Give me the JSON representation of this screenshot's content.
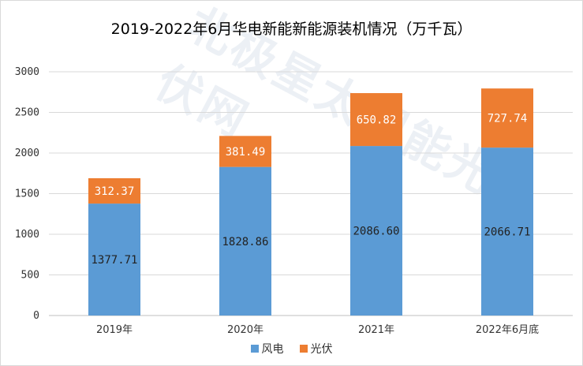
{
  "chart_data": {
    "type": "bar",
    "stacked": true,
    "title": "2019-2022年6月华电新能新能源装机情况（万千瓦）",
    "categories": [
      "2019年",
      "2020年",
      "2021年",
      "2022年6月底"
    ],
    "series": [
      {
        "name": "风电",
        "color": "#5b9bd5",
        "values": [
          1377.71,
          1828.86,
          2086.6,
          2066.71
        ],
        "labels": [
          "1377.71",
          "1828.86",
          "2086.60",
          "2066.71"
        ]
      },
      {
        "name": "光伏",
        "color": "#ed7d31",
        "values": [
          312.37,
          381.49,
          650.82,
          727.74
        ],
        "labels": [
          "312.37",
          "381.49",
          "650.82",
          "727.74"
        ]
      }
    ],
    "ylim": [
      0,
      3000
    ],
    "yticks": [
      "0",
      "500",
      "1000",
      "1500",
      "2000",
      "2500",
      "3000"
    ],
    "grid": true,
    "legend_position": "bottom"
  },
  "watermark": "北极星太阳能光伏网"
}
